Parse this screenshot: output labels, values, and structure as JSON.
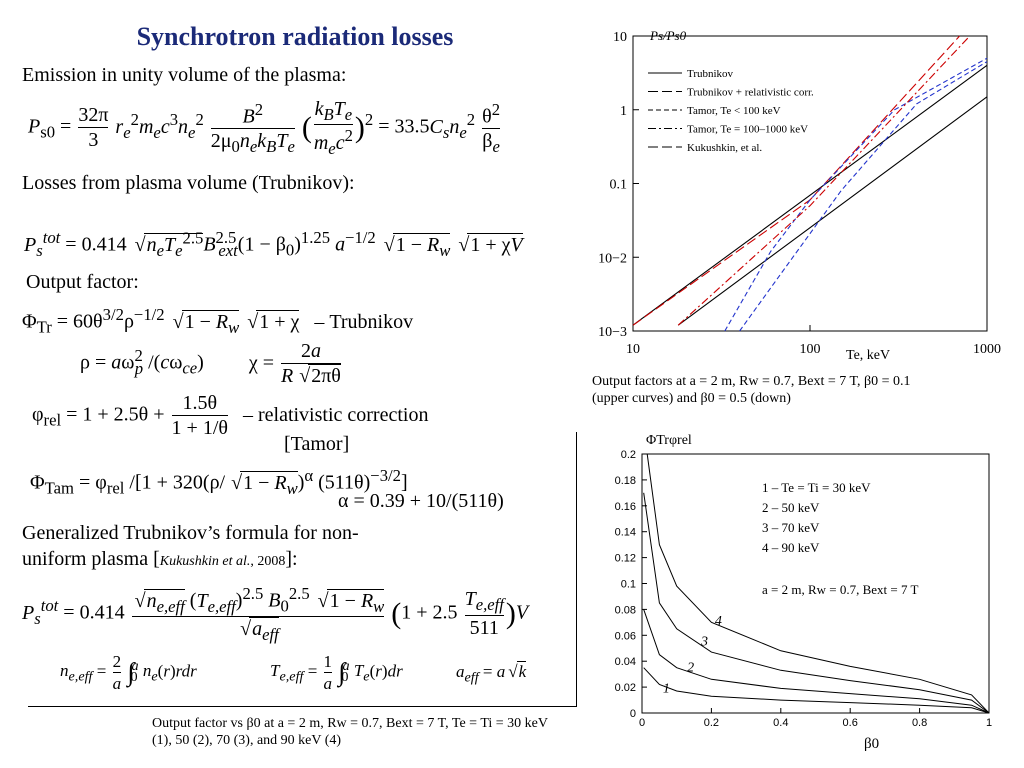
{
  "title": "Synchrotron radiation losses",
  "text": {
    "emission": "Emission in unity volume of the plasma:",
    "losses": "Losses from plasma volume (Trubnikov):",
    "output_factor": "Output factor:",
    "trubnikov_tag": "– Trubnikov",
    "rel_tag": "– relativistic correction",
    "tamor_tag": "[Tamor]",
    "generalized_1": "Generalized Trubnikov’s formula for non-",
    "generalized_2": "uniform plasma [",
    "generalized_ref": "Kukushkin et al.",
    "generalized_year": ", 2008",
    "generalized_end": "]:"
  },
  "eq": {
    "ps0_const": "= 33.5",
    "ptot_const": "= 0.414",
    "phi_tr_const": "= 60",
    "phi_rel_const": "= 1 + 2.5θ +",
    "alpha": "α = 0.39 + 10/(511θ)",
    "gen_const": "= 0.414",
    "gen_1p25": "1 + 2.5",
    "gen_511": "511"
  },
  "chart_top": {
    "ylabel": "Ps/Ps0",
    "xlabel": "Te, keV",
    "x_ticks": [
      "10",
      "100",
      "1000"
    ],
    "y_ticks": [
      "10",
      "1",
      "0.1",
      "10−2",
      "10−3"
    ],
    "legend": [
      "Trubnikov",
      "Trubnikov + relativistic corr.",
      "Tamor, Te < 100 keV",
      "Tamor, Te = 100–1000 keV",
      "Kukushkin, et al."
    ],
    "caption_1": "Output factors at a = 2 m, Rw = 0.7, Bext = 7 T, β0 = 0.1",
    "caption_2": "(upper curves) and β0 = 0.5 (down)"
  },
  "chart_bottom": {
    "ylabel": "ΦTrφrel",
    "xlabel": "β0",
    "x_ticks": [
      "0",
      "0.2",
      "0.4",
      "0.6",
      "0.8",
      "1"
    ],
    "y_ticks": [
      "0.2",
      "0.18",
      "0.16",
      "0.14",
      "0.12",
      "0.1",
      "0.08",
      "0.06",
      "0.04",
      "0.02",
      "0"
    ],
    "legend": [
      "1 – Te = Ti = 30 keV",
      "2 – 50 keV",
      "3 – 70 keV",
      "4 – 90 keV"
    ],
    "params": "a = 2 m, Rw = 0.7, Bext = 7 T",
    "curve_labels": [
      "1",
      "2",
      "3",
      "4"
    ]
  },
  "bottom_caption_1": "Output factor vs β0 at a = 2 m, Rw = 0.7, Bext = 7 T, Te = Ti = 30 keV",
  "bottom_caption_2": "(1), 50 (2), 70 (3), and 90 keV (4)",
  "chart_data": [
    {
      "type": "line",
      "xscale": "log",
      "yscale": "log",
      "xlim": [
        10,
        1000
      ],
      "ylim": [
        0.001,
        10
      ],
      "xlabel": "Te, keV",
      "ylabel": "Ps/Ps0",
      "series": [
        {
          "name": "Trubnikov",
          "style": "solid",
          "x": [
            10,
            1000
          ],
          "y": [
            0.0012,
            4.0
          ]
        },
        {
          "name": "Trubnikov",
          "style": "solid",
          "x": [
            18,
            1000
          ],
          "y": [
            0.0012,
            1.5
          ]
        },
        {
          "name": "Trubnikov + relativistic corr.",
          "style": "longdash",
          "color": "#cc0000",
          "x": [
            10,
            100,
            700
          ],
          "y": [
            0.0012,
            0.06,
            10
          ]
        },
        {
          "name": "Tamor, Te < 100 keV",
          "style": "dash",
          "color": "#2233cc",
          "x": [
            33,
            60,
            100,
            300,
            1000
          ],
          "y": [
            0.001,
            0.012,
            0.06,
            1.0,
            5.0
          ]
        },
        {
          "name": "Tamor, Te = 100–1000 keV",
          "style": "dashdot",
          "color": "#cc0000",
          "x": [
            18,
            100,
            800
          ],
          "y": [
            0.0012,
            0.05,
            10
          ]
        },
        {
          "name": "Kukushkin, et al.",
          "style": "dash",
          "color": "#2233cc",
          "x": [
            40,
            80,
            150,
            400,
            1000
          ],
          "y": [
            0.001,
            0.01,
            0.08,
            1.2,
            4.5
          ]
        }
      ]
    },
    {
      "type": "line",
      "xlim": [
        0,
        1
      ],
      "ylim": [
        0,
        0.2
      ],
      "xlabel": "β0",
      "ylabel": "ΦTrφrel",
      "series": [
        {
          "name": "1",
          "x": [
            0.005,
            0.05,
            0.1,
            0.2,
            0.4,
            0.6,
            0.8,
            0.95,
            1.0
          ],
          "y": [
            0.035,
            0.022,
            0.017,
            0.013,
            0.01,
            0.008,
            0.006,
            0.004,
            0.0
          ]
        },
        {
          "name": "2",
          "x": [
            0.005,
            0.05,
            0.1,
            0.2,
            0.4,
            0.6,
            0.8,
            0.95,
            1.0
          ],
          "y": [
            0.08,
            0.045,
            0.035,
            0.026,
            0.019,
            0.015,
            0.011,
            0.006,
            0.0
          ]
        },
        {
          "name": "3",
          "x": [
            0.005,
            0.05,
            0.1,
            0.2,
            0.4,
            0.6,
            0.8,
            0.95,
            1.0
          ],
          "y": [
            0.17,
            0.085,
            0.065,
            0.047,
            0.033,
            0.025,
            0.018,
            0.01,
            0.0
          ]
        },
        {
          "name": "4",
          "x": [
            0.015,
            0.05,
            0.1,
            0.2,
            0.4,
            0.6,
            0.8,
            0.95,
            1.0
          ],
          "y": [
            0.2,
            0.13,
            0.098,
            0.07,
            0.048,
            0.036,
            0.026,
            0.014,
            0.0
          ]
        }
      ]
    }
  ]
}
